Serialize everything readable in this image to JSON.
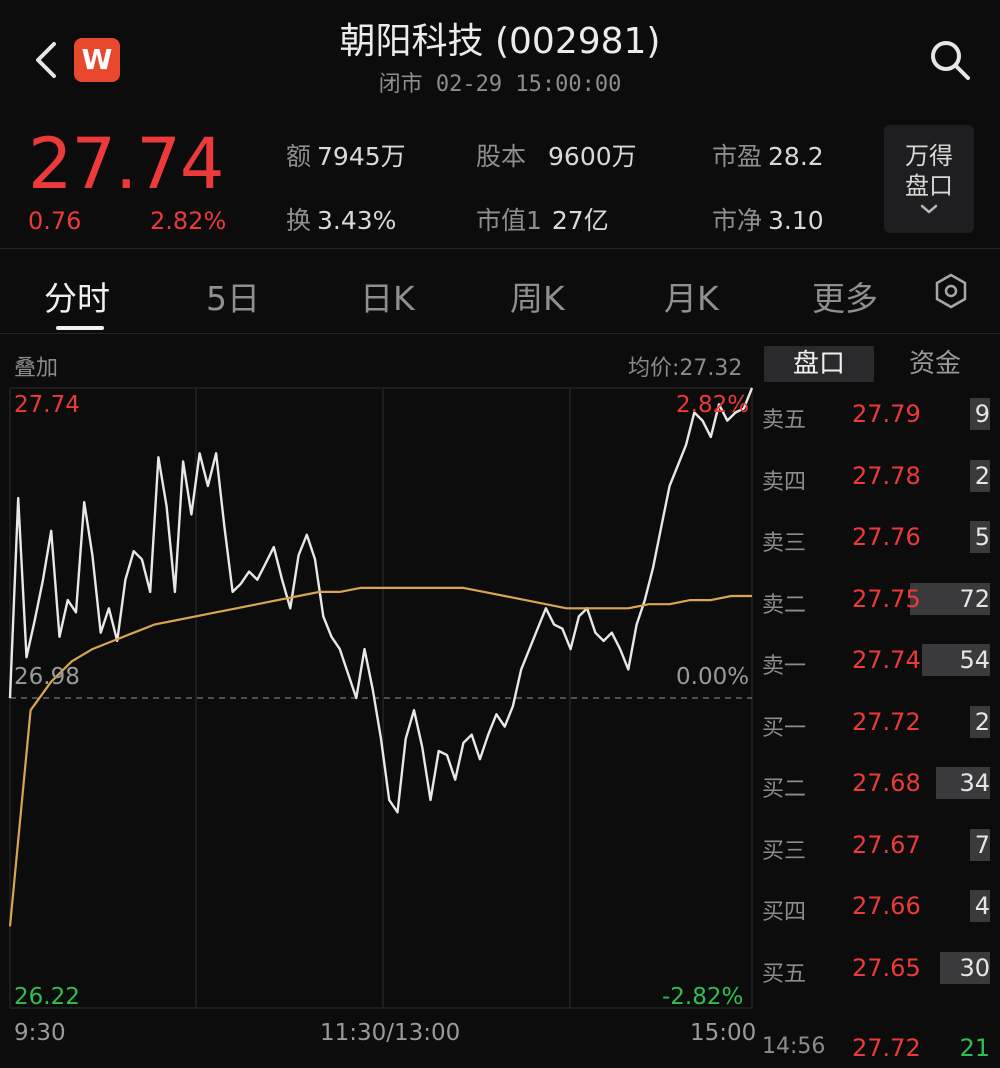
{
  "header": {
    "logo_letter": "W",
    "title": "朝阳科技 (002981)",
    "subtitle": "闭市 02-29 15:00:00"
  },
  "quote": {
    "price": "27.74",
    "change": "0.76",
    "change_pct": "2.82%",
    "stats": {
      "amount_label": "额",
      "amount_value": "7945万",
      "turnover_label": "换",
      "turnover_value": "3.43%",
      "equity_label": "股本",
      "equity_value": "9600万",
      "mktcap_label": "市值1",
      "mktcap_value": "27亿",
      "pe_label": "市盈",
      "pe_value": "28.2",
      "pb_label": "市净",
      "pb_value": "3.10"
    },
    "pankou_button": {
      "line1": "万得",
      "line2": "盘口"
    }
  },
  "tabs": [
    "分时",
    "5日",
    "日K",
    "周K",
    "月K",
    "更多"
  ],
  "chart": {
    "overlay_label": "叠加",
    "avg_price_label": "均价:27.32",
    "y_top_label": "27.74",
    "y_mid_label": "26.98",
    "y_bottom_label": "26.22",
    "pct_top_label": "2.82%",
    "pct_mid_label": "0.00%",
    "pct_bottom_label": "-2.82%",
    "x_labels": [
      "9:30",
      "11:30/13:00",
      "15:00"
    ]
  },
  "chart_data": {
    "type": "line",
    "ylim": [
      26.22,
      27.74
    ],
    "prev_close": 26.98,
    "series": [
      {
        "name": "价格",
        "color": "#e8e8e8",
        "values": [
          26.98,
          27.47,
          27.08,
          27.17,
          27.27,
          27.39,
          27.13,
          27.22,
          27.19,
          27.46,
          27.33,
          27.14,
          27.2,
          27.12,
          27.27,
          27.34,
          27.32,
          27.24,
          27.57,
          27.45,
          27.24,
          27.56,
          27.43,
          27.58,
          27.5,
          27.58,
          27.4,
          27.24,
          27.26,
          27.29,
          27.27,
          27.31,
          27.35,
          27.27,
          27.2,
          27.33,
          27.38,
          27.32,
          27.18,
          27.13,
          27.1,
          27.04,
          26.98,
          27.1,
          27.0,
          26.88,
          26.73,
          26.7,
          26.88,
          26.95,
          26.86,
          26.73,
          26.85,
          26.84,
          26.78,
          26.87,
          26.89,
          26.83,
          26.89,
          26.94,
          26.91,
          26.96,
          27.05,
          27.1,
          27.15,
          27.2,
          27.16,
          27.15,
          27.1,
          27.18,
          27.2,
          27.14,
          27.12,
          27.14,
          27.1,
          27.05,
          27.16,
          27.22,
          27.3,
          27.4,
          27.5,
          27.55,
          27.6,
          27.68,
          27.66,
          27.62,
          27.7,
          27.66,
          27.68,
          27.69,
          27.74
        ]
      },
      {
        "name": "均价",
        "color": "#d9a555",
        "values": [
          26.42,
          26.95,
          27.02,
          27.07,
          27.1,
          27.12,
          27.14,
          27.16,
          27.17,
          27.18,
          27.19,
          27.2,
          27.21,
          27.22,
          27.23,
          27.24,
          27.24,
          27.25,
          27.25,
          27.25,
          27.25,
          27.25,
          27.25,
          27.24,
          27.23,
          27.22,
          27.21,
          27.2,
          27.2,
          27.2,
          27.2,
          27.21,
          27.21,
          27.22,
          27.22,
          27.23,
          27.23
        ]
      }
    ]
  },
  "orderbook": {
    "tab_active": "盘口",
    "tab_inactive": "资金",
    "rows": [
      {
        "label": "卖五",
        "price": "27.79",
        "volume": "9",
        "bar": 0.12
      },
      {
        "label": "卖四",
        "price": "27.78",
        "volume": "2",
        "bar": 0.05
      },
      {
        "label": "卖三",
        "price": "27.76",
        "volume": "5",
        "bar": 0.08
      },
      {
        "label": "卖二",
        "price": "27.75",
        "volume": "72",
        "bar": 1.0
      },
      {
        "label": "卖一",
        "price": "27.74",
        "volume": "54",
        "bar": 0.85
      },
      {
        "label": "买一",
        "price": "27.72",
        "volume": "2",
        "bar": 0.05
      },
      {
        "label": "买二",
        "price": "27.68",
        "volume": "34",
        "bar": 0.67
      },
      {
        "label": "买三",
        "price": "27.67",
        "volume": "7",
        "bar": 0.1
      },
      {
        "label": "买四",
        "price": "27.66",
        "volume": "4",
        "bar": 0.07
      },
      {
        "label": "买五",
        "price": "27.65",
        "volume": "30",
        "bar": 0.63
      }
    ],
    "last_tick": {
      "time": "14:56",
      "price": "27.72",
      "volume": "21"
    }
  }
}
